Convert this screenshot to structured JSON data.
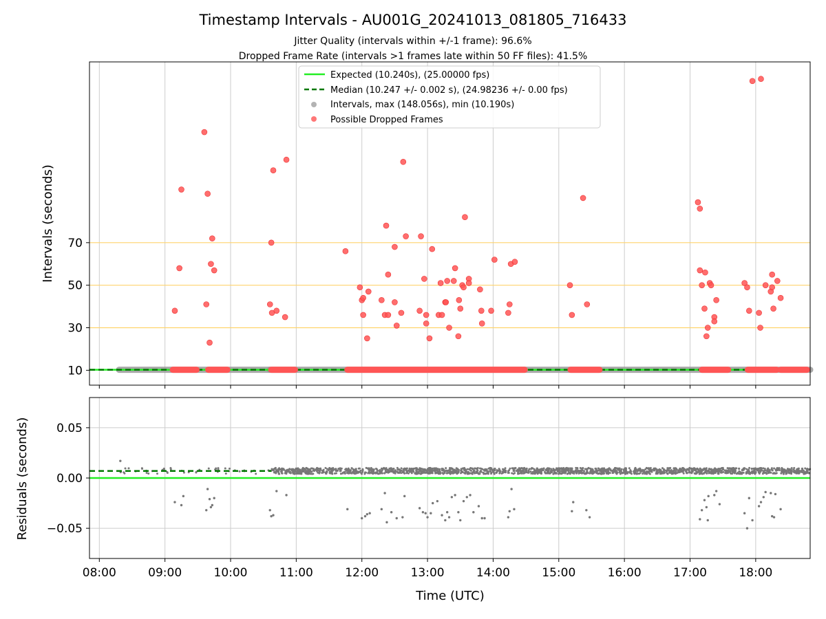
{
  "chart_data": [
    {
      "type": "scatter",
      "title": "Timestamp Intervals - AU001G_20241013_081805_716433",
      "subtitle_1": "Jitter Quality (intervals within +/-1 frame): 96.6%",
      "subtitle_2": "Dropped Frame Rate (intervals >1 frames late within 50 FF files): 41.5%",
      "ylabel": "Intervals (seconds)",
      "xlabel": "",
      "x_ticks": [
        "08:00",
        "09:00",
        "10:00",
        "11:00",
        "12:00",
        "13:00",
        "14:00",
        "15:00",
        "16:00",
        "17:00",
        "18:00"
      ],
      "y_ticks": [
        "10",
        "30",
        "50",
        "70"
      ],
      "ylim": [
        3,
        155
      ],
      "xlim_hours": [
        7.85,
        18.83
      ],
      "grid": true,
      "reference_lines": [
        30,
        50,
        70
      ],
      "reference_line_color": "#ffd36b",
      "legend_position": "top-center",
      "legend": [
        {
          "label": "Expected (10.240s), (25.00000 fps)",
          "style": "line",
          "color": "#22ee22"
        },
        {
          "label": "Median (10.247 +/- 0.002 s), (24.98236 +/- 0.00 fps)",
          "style": "dashed",
          "color": "#007700"
        },
        {
          "label": "Intervals, max (148.056s), min (10.190s)",
          "style": "marker",
          "color": "#999999"
        },
        {
          "label": "Possible Dropped Frames",
          "style": "marker",
          "color": "#ff5555"
        }
      ],
      "expected_interval": 10.24,
      "median_interval": 10.247,
      "baseline_ranges_hours": [
        [
          8.3,
          10.6
        ],
        [
          10.6,
          18.83
        ]
      ],
      "dropped_frames_on_baseline_hours": [
        [
          9.12,
          9.48
        ],
        [
          9.66,
          9.95
        ],
        [
          10.62,
          10.98
        ],
        [
          11.78,
          14.48
        ],
        [
          15.18,
          15.62
        ],
        [
          17.18,
          17.58
        ],
        [
          17.88,
          18.32
        ],
        [
          18.38,
          18.78
        ]
      ],
      "dropped_frames": [
        {
          "x": 9.15,
          "y": 38
        },
        {
          "x": 9.22,
          "y": 58
        },
        {
          "x": 9.25,
          "y": 95
        },
        {
          "x": 9.6,
          "y": 122
        },
        {
          "x": 9.63,
          "y": 41
        },
        {
          "x": 9.65,
          "y": 93
        },
        {
          "x": 9.68,
          "y": 23
        },
        {
          "x": 9.7,
          "y": 60
        },
        {
          "x": 9.72,
          "y": 72
        },
        {
          "x": 9.75,
          "y": 57
        },
        {
          "x": 10.6,
          "y": 41
        },
        {
          "x": 10.62,
          "y": 70
        },
        {
          "x": 10.63,
          "y": 37
        },
        {
          "x": 10.65,
          "y": 104
        },
        {
          "x": 10.7,
          "y": 38
        },
        {
          "x": 10.83,
          "y": 35
        },
        {
          "x": 10.85,
          "y": 109
        },
        {
          "x": 11.75,
          "y": 66
        },
        {
          "x": 11.97,
          "y": 49
        },
        {
          "x": 12.0,
          "y": 43
        },
        {
          "x": 12.02,
          "y": 44
        },
        {
          "x": 12.02,
          "y": 36
        },
        {
          "x": 12.08,
          "y": 25
        },
        {
          "x": 12.1,
          "y": 47
        },
        {
          "x": 12.3,
          "y": 43
        },
        {
          "x": 12.35,
          "y": 36
        },
        {
          "x": 12.37,
          "y": 78
        },
        {
          "x": 12.4,
          "y": 36
        },
        {
          "x": 12.4,
          "y": 55
        },
        {
          "x": 12.5,
          "y": 42
        },
        {
          "x": 12.5,
          "y": 68
        },
        {
          "x": 12.53,
          "y": 31
        },
        {
          "x": 12.6,
          "y": 37
        },
        {
          "x": 12.63,
          "y": 108
        },
        {
          "x": 12.67,
          "y": 73
        },
        {
          "x": 12.88,
          "y": 38
        },
        {
          "x": 12.9,
          "y": 73
        },
        {
          "x": 12.95,
          "y": 53
        },
        {
          "x": 12.98,
          "y": 36
        },
        {
          "x": 12.98,
          "y": 32
        },
        {
          "x": 13.03,
          "y": 25
        },
        {
          "x": 13.07,
          "y": 67
        },
        {
          "x": 13.17,
          "y": 36
        },
        {
          "x": 13.2,
          "y": 51
        },
        {
          "x": 13.22,
          "y": 36
        },
        {
          "x": 13.27,
          "y": 42
        },
        {
          "x": 13.28,
          "y": 42
        },
        {
          "x": 13.3,
          "y": 52
        },
        {
          "x": 13.33,
          "y": 30
        },
        {
          "x": 13.4,
          "y": 52
        },
        {
          "x": 13.42,
          "y": 58
        },
        {
          "x": 13.47,
          "y": 26
        },
        {
          "x": 13.48,
          "y": 43
        },
        {
          "x": 13.5,
          "y": 39
        },
        {
          "x": 13.53,
          "y": 50
        },
        {
          "x": 13.55,
          "y": 49
        },
        {
          "x": 13.57,
          "y": 82
        },
        {
          "x": 13.63,
          "y": 53
        },
        {
          "x": 13.63,
          "y": 51
        },
        {
          "x": 13.8,
          "y": 48
        },
        {
          "x": 13.82,
          "y": 38
        },
        {
          "x": 13.83,
          "y": 32
        },
        {
          "x": 13.97,
          "y": 38
        },
        {
          "x": 14.02,
          "y": 62
        },
        {
          "x": 14.23,
          "y": 37
        },
        {
          "x": 14.25,
          "y": 41
        },
        {
          "x": 14.27,
          "y": 60
        },
        {
          "x": 14.33,
          "y": 61
        },
        {
          "x": 15.17,
          "y": 50
        },
        {
          "x": 15.2,
          "y": 36
        },
        {
          "x": 15.37,
          "y": 91
        },
        {
          "x": 15.43,
          "y": 41
        },
        {
          "x": 17.12,
          "y": 89
        },
        {
          "x": 17.15,
          "y": 86
        },
        {
          "x": 17.15,
          "y": 57
        },
        {
          "x": 17.18,
          "y": 50
        },
        {
          "x": 17.22,
          "y": 39
        },
        {
          "x": 17.23,
          "y": 56
        },
        {
          "x": 17.25,
          "y": 26
        },
        {
          "x": 17.27,
          "y": 30
        },
        {
          "x": 17.3,
          "y": 51
        },
        {
          "x": 17.32,
          "y": 50
        },
        {
          "x": 17.37,
          "y": 35
        },
        {
          "x": 17.37,
          "y": 33
        },
        {
          "x": 17.4,
          "y": 43
        },
        {
          "x": 17.83,
          "y": 51
        },
        {
          "x": 17.87,
          "y": 49
        },
        {
          "x": 17.9,
          "y": 38
        },
        {
          "x": 17.95,
          "y": 146
        },
        {
          "x": 18.05,
          "y": 37
        },
        {
          "x": 18.07,
          "y": 30
        },
        {
          "x": 18.08,
          "y": 147
        },
        {
          "x": 18.15,
          "y": 50
        },
        {
          "x": 18.23,
          "y": 47
        },
        {
          "x": 18.25,
          "y": 49
        },
        {
          "x": 18.25,
          "y": 55
        },
        {
          "x": 18.27,
          "y": 39
        },
        {
          "x": 18.33,
          "y": 52
        },
        {
          "x": 18.38,
          "y": 44
        }
      ]
    },
    {
      "type": "scatter",
      "ylabel": "Residuals (seconds)",
      "xlabel": "Time (UTC)",
      "x_ticks": [
        "08:00",
        "09:00",
        "10:00",
        "11:00",
        "12:00",
        "13:00",
        "14:00",
        "15:00",
        "16:00",
        "17:00",
        "18:00"
      ],
      "y_ticks": [
        "0.05",
        "0.00",
        "−0.05"
      ],
      "ylim": [
        -0.08,
        0.08
      ],
      "grid": true,
      "expected_residual": 0.0,
      "median_residual": 0.007,
      "dense_band": {
        "y_min": 0.004,
        "y_max": 0.01,
        "sparse_until_hours": 10.62
      },
      "outliers": [
        {
          "x": 8.32,
          "y": 0.017
        },
        {
          "x": 9.15,
          "y": -0.024
        },
        {
          "x": 9.25,
          "y": -0.027
        },
        {
          "x": 9.28,
          "y": -0.018
        },
        {
          "x": 9.63,
          "y": -0.032
        },
        {
          "x": 9.65,
          "y": -0.011
        },
        {
          "x": 9.68,
          "y": -0.021
        },
        {
          "x": 9.7,
          "y": -0.029
        },
        {
          "x": 9.72,
          "y": -0.027
        },
        {
          "x": 9.75,
          "y": -0.02
        },
        {
          "x": 10.6,
          "y": -0.032
        },
        {
          "x": 10.62,
          "y": -0.038
        },
        {
          "x": 10.65,
          "y": -0.037
        },
        {
          "x": 10.7,
          "y": -0.013
        },
        {
          "x": 10.85,
          "y": -0.017
        },
        {
          "x": 11.78,
          "y": -0.031
        },
        {
          "x": 12.0,
          "y": -0.04
        },
        {
          "x": 12.05,
          "y": -0.038
        },
        {
          "x": 12.08,
          "y": -0.036
        },
        {
          "x": 12.12,
          "y": -0.035
        },
        {
          "x": 12.3,
          "y": -0.031
        },
        {
          "x": 12.35,
          "y": -0.015
        },
        {
          "x": 12.38,
          "y": -0.044
        },
        {
          "x": 12.45,
          "y": -0.034
        },
        {
          "x": 12.53,
          "y": -0.04
        },
        {
          "x": 12.62,
          "y": -0.039
        },
        {
          "x": 12.65,
          "y": -0.018
        },
        {
          "x": 12.88,
          "y": -0.03
        },
        {
          "x": 12.93,
          "y": -0.034
        },
        {
          "x": 12.97,
          "y": -0.035
        },
        {
          "x": 13.0,
          "y": -0.039
        },
        {
          "x": 13.05,
          "y": -0.035
        },
        {
          "x": 13.08,
          "y": -0.025
        },
        {
          "x": 13.15,
          "y": -0.023
        },
        {
          "x": 13.22,
          "y": -0.037
        },
        {
          "x": 13.27,
          "y": -0.042
        },
        {
          "x": 13.3,
          "y": -0.034
        },
        {
          "x": 13.33,
          "y": -0.039
        },
        {
          "x": 13.37,
          "y": -0.019
        },
        {
          "x": 13.42,
          "y": -0.017
        },
        {
          "x": 13.47,
          "y": -0.034
        },
        {
          "x": 13.5,
          "y": -0.042
        },
        {
          "x": 13.55,
          "y": -0.023
        },
        {
          "x": 13.6,
          "y": -0.019
        },
        {
          "x": 13.65,
          "y": -0.017
        },
        {
          "x": 13.7,
          "y": -0.034
        },
        {
          "x": 13.78,
          "y": -0.028
        },
        {
          "x": 13.83,
          "y": -0.04
        },
        {
          "x": 13.87,
          "y": -0.04
        },
        {
          "x": 14.23,
          "y": -0.039
        },
        {
          "x": 14.25,
          "y": -0.033
        },
        {
          "x": 14.28,
          "y": -0.011
        },
        {
          "x": 14.32,
          "y": -0.031
        },
        {
          "x": 15.2,
          "y": -0.033
        },
        {
          "x": 15.22,
          "y": -0.024
        },
        {
          "x": 15.42,
          "y": -0.032
        },
        {
          "x": 15.47,
          "y": -0.039
        },
        {
          "x": 17.15,
          "y": -0.041
        },
        {
          "x": 17.18,
          "y": -0.032
        },
        {
          "x": 17.22,
          "y": -0.022
        },
        {
          "x": 17.25,
          "y": -0.029
        },
        {
          "x": 17.27,
          "y": -0.042
        },
        {
          "x": 17.28,
          "y": -0.018
        },
        {
          "x": 17.37,
          "y": -0.017
        },
        {
          "x": 17.4,
          "y": -0.013
        },
        {
          "x": 17.45,
          "y": -0.026
        },
        {
          "x": 17.83,
          "y": -0.035
        },
        {
          "x": 17.87,
          "y": -0.05
        },
        {
          "x": 17.9,
          "y": -0.02
        },
        {
          "x": 17.95,
          "y": -0.042
        },
        {
          "x": 18.05,
          "y": -0.028
        },
        {
          "x": 18.08,
          "y": -0.024
        },
        {
          "x": 18.12,
          "y": -0.019
        },
        {
          "x": 18.15,
          "y": -0.014
        },
        {
          "x": 18.23,
          "y": -0.015
        },
        {
          "x": 18.25,
          "y": -0.038
        },
        {
          "x": 18.28,
          "y": -0.039
        },
        {
          "x": 18.3,
          "y": -0.016
        },
        {
          "x": 18.38,
          "y": -0.031
        }
      ]
    }
  ],
  "colors": {
    "expected": "#22ee22",
    "median": "#007700",
    "intervals": "#999999",
    "dropped": "#ff5555",
    "residual_points": "#777777",
    "grid": "#cccccc",
    "reference": "#ffd36b"
  }
}
